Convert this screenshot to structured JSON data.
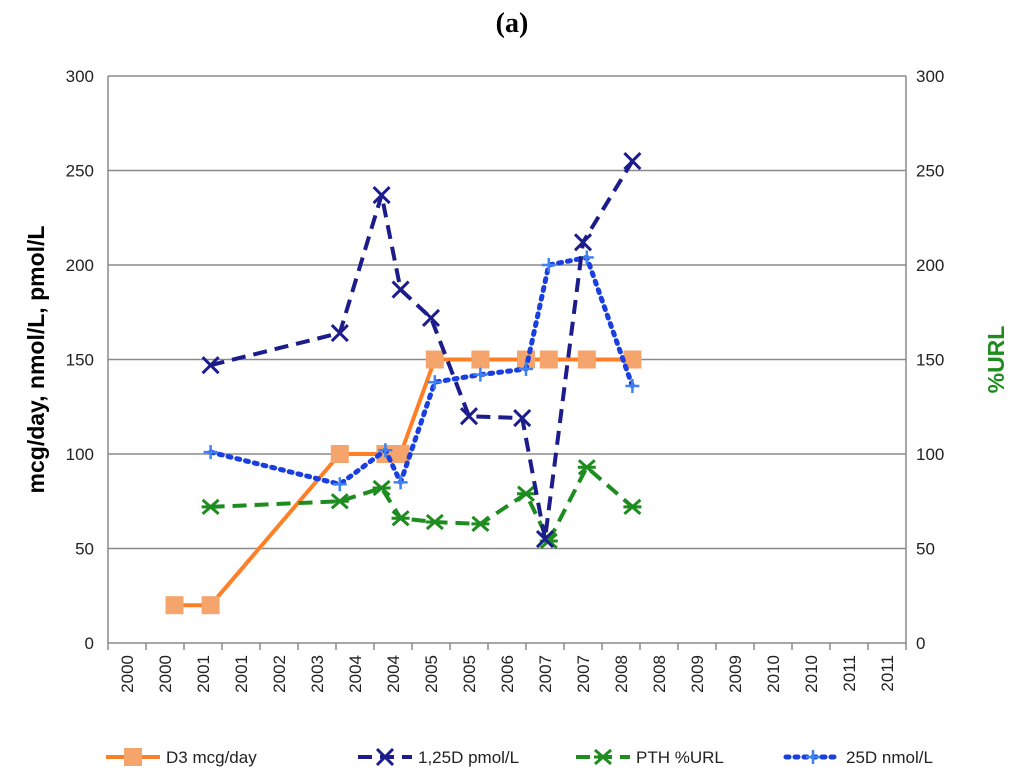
{
  "panel_label": "(a)",
  "chart_data": {
    "type": "line",
    "title": "(a)",
    "xlabel": "",
    "ylabel": "mcg/day, nmol/L, pmol/L",
    "ylabel_right": "%URL",
    "ylim": [
      0,
      300
    ],
    "ylim_right": [
      0,
      300
    ],
    "y_ticks": [
      "0",
      "50",
      "100",
      "150",
      "200",
      "250",
      "300"
    ],
    "y_ticks_right": [
      "0",
      "50",
      "100",
      "150",
      "200",
      "250",
      "300"
    ],
    "x_tick_labels": [
      "2000",
      "2000",
      "2001",
      "2001",
      "2002",
      "2003",
      "2004",
      "2004",
      "2005",
      "2005",
      "2006",
      "2007",
      "2007",
      "2008",
      "2008",
      "2009",
      "2009",
      "2010",
      "2010",
      "2011",
      "2011"
    ],
    "grid": true,
    "legend_position": "bottom",
    "series": [
      {
        "name": "D3 mcg/day",
        "color": "#FF7F27",
        "marker_color": "#F5A56B",
        "style": "solid",
        "marker": "square",
        "axis": "left",
        "points": [
          [
            1.25,
            20
          ],
          [
            2.2,
            20
          ],
          [
            5.6,
            100
          ],
          [
            6.8,
            100
          ],
          [
            7.2,
            100
          ],
          [
            8.1,
            150
          ],
          [
            9.3,
            150
          ],
          [
            10.5,
            150
          ],
          [
            11.1,
            150
          ],
          [
            12.1,
            150
          ],
          [
            13.3,
            150
          ]
        ]
      },
      {
        "name": "1,25D pmol/L",
        "color": "#1C1C8C",
        "style": "dash",
        "marker": "x",
        "axis": "left",
        "points": [
          [
            2.2,
            147
          ],
          [
            5.6,
            164
          ],
          [
            6.7,
            237
          ],
          [
            7.2,
            187
          ],
          [
            8.0,
            172
          ],
          [
            9.0,
            120
          ],
          [
            10.4,
            119
          ],
          [
            11.0,
            55
          ],
          [
            12.0,
            212
          ],
          [
            13.3,
            255
          ]
        ]
      },
      {
        "name": "PTH %URL",
        "color": "#1E8C1E",
        "style": "dash",
        "marker": "asterisk",
        "axis": "right",
        "points": [
          [
            2.2,
            72
          ],
          [
            5.6,
            75
          ],
          [
            6.7,
            82
          ],
          [
            7.2,
            66
          ],
          [
            8.1,
            64
          ],
          [
            9.3,
            63
          ],
          [
            10.5,
            79
          ],
          [
            11.1,
            54
          ],
          [
            12.1,
            93
          ],
          [
            13.3,
            72
          ]
        ]
      },
      {
        "name": "25D nmol/L",
        "color": "#1A3FE0",
        "marker_color": "#3D82F0",
        "style": "dot",
        "marker": "plus",
        "axis": "left",
        "points": [
          [
            2.2,
            101
          ],
          [
            5.6,
            84
          ],
          [
            6.8,
            102
          ],
          [
            7.2,
            85
          ],
          [
            8.1,
            138
          ],
          [
            9.3,
            142
          ],
          [
            10.5,
            145
          ],
          [
            11.1,
            200
          ],
          [
            12.1,
            204
          ],
          [
            13.3,
            136
          ]
        ]
      }
    ]
  }
}
